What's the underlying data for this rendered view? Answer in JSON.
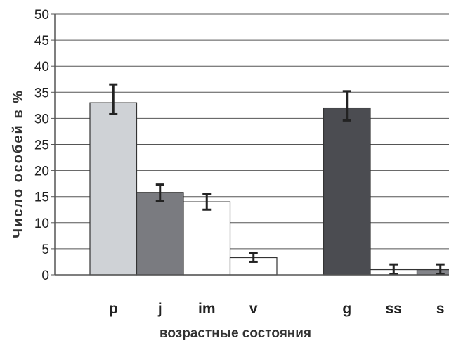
{
  "chart_data": {
    "type": "bar",
    "title": "",
    "xlabel": "возрастные состояния",
    "ylabel": "Число особей в %",
    "ylim": [
      0,
      50
    ],
    "yticks": [
      "0",
      "5",
      "10",
      "15",
      "20",
      "25",
      "30",
      "35",
      "40",
      "45",
      "50"
    ],
    "grid": true,
    "legend": "none",
    "categories": [
      "p",
      "j",
      "im",
      "v",
      "g",
      "ss",
      "s"
    ],
    "values": [
      33,
      15.8,
      14,
      3.3,
      32,
      1,
      1
    ],
    "error_low": [
      30.8,
      14.2,
      12.5,
      2.5,
      29.6,
      0.2,
      0.2
    ],
    "error_high": [
      36.5,
      17.3,
      15.5,
      4.2,
      35.2,
      2,
      2
    ],
    "colors": [
      "#cfd2d6",
      "#7a7b80",
      "#ffffff",
      "#ffffff",
      "#4b4c51",
      "#ffffff",
      "#838489"
    ]
  }
}
